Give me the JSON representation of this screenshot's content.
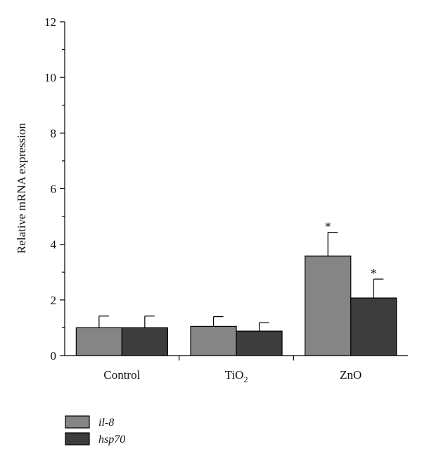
{
  "chart_data": {
    "type": "bar",
    "ylabel": "Relative mRNA expression",
    "xlabel": "",
    "ylim": [
      0,
      12
    ],
    "y_ticks": [
      "0",
      "2",
      "4",
      "6",
      "8",
      "10",
      "12"
    ],
    "grid": false,
    "legend_position": "bottom-left",
    "categories": [
      {
        "label": "Control",
        "sub": ""
      },
      {
        "label": "TiO",
        "sub": "2"
      },
      {
        "label": "ZnO",
        "sub": ""
      }
    ],
    "series": [
      {
        "name": "il-8",
        "color": "#858585",
        "values": [
          1.0,
          1.05,
          3.58
        ],
        "errors": [
          0.42,
          0.35,
          0.85
        ],
        "annotations": [
          "",
          "",
          "*"
        ]
      },
      {
        "name": "hsp70",
        "color": "#3d3d3d",
        "values": [
          1.0,
          0.88,
          2.07
        ],
        "errors": [
          0.42,
          0.3,
          0.68
        ],
        "annotations": [
          "",
          "",
          "*"
        ]
      }
    ]
  }
}
